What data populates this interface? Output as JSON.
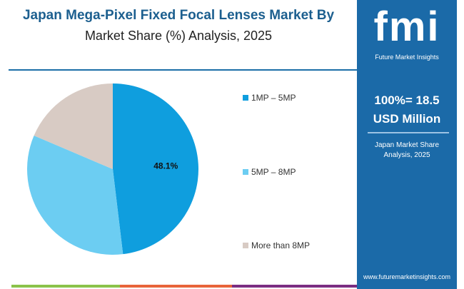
{
  "header": {
    "title_line1": "Japan Mega-Pixel Fixed Focal Lenses Market By",
    "title_line2": "Market Share (%) Analysis, 2025"
  },
  "panel": {
    "logo_text": "fmi",
    "logo_sub": "Future Market Insights",
    "total": "100%= 18.5",
    "unit": "USD Million",
    "subtitle_line1": "Japan Market Share",
    "subtitle_line2": "Analysis, 2025",
    "url": "www.futuremarketinsights.com"
  },
  "chart_data": {
    "type": "pie",
    "categories": [
      "1MP – 5MP",
      "5MP – 8MP",
      "More than 8MP"
    ],
    "values": [
      48.1,
      33.3,
      18.6
    ],
    "colors": [
      "#0f9ede",
      "#6ccdf2",
      "#d8cbc4"
    ],
    "data_labels": [
      "48.1%",
      "",
      ""
    ],
    "legend_placement": "right"
  },
  "colors": {
    "brand": "#1b6aa8",
    "strip": [
      "#8bc34a",
      "#e8643a",
      "#7b2d82"
    ]
  }
}
